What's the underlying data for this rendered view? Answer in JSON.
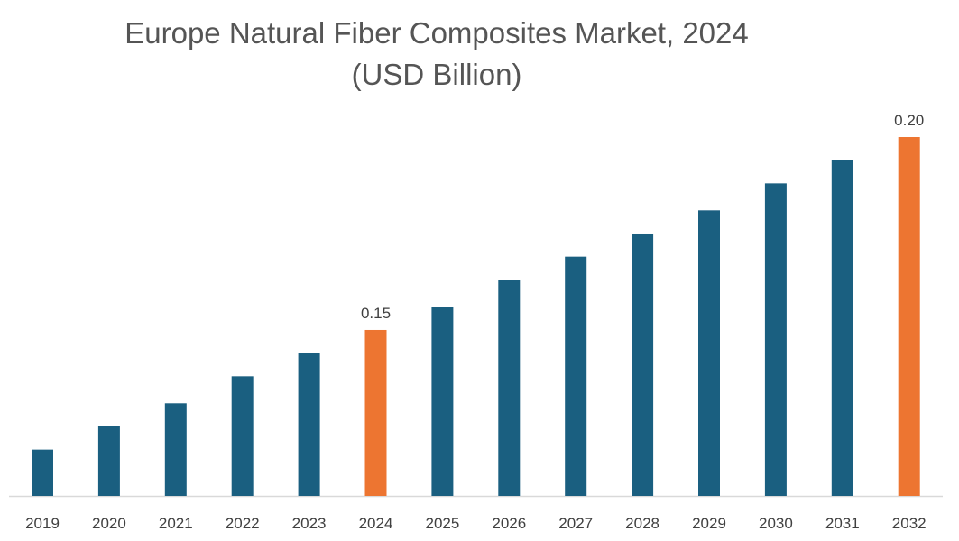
{
  "chart_data": {
    "type": "bar",
    "title": "Europe Natural Fiber Composites Market, 2024",
    "subtitle": "(USD Billion)",
    "xlabel": "",
    "ylabel": "",
    "categories": [
      "2019",
      "2020",
      "2021",
      "2022",
      "2023",
      "2024",
      "2025",
      "2026",
      "2027",
      "2028",
      "2029",
      "2030",
      "2031",
      "2032"
    ],
    "values": [
      0.119,
      0.125,
      0.131,
      0.138,
      0.144,
      0.15,
      0.156,
      0.163,
      0.169,
      0.175,
      0.181,
      0.188,
      0.194,
      0.2
    ],
    "data_labels": {
      "2024": "0.15",
      "2032": "0.20"
    },
    "highlight": [
      "2024",
      "2032"
    ],
    "ylim": [
      0.107,
      0.2
    ],
    "grid": false,
    "colors": {
      "bar": "#1a5f80",
      "highlight": "#ed7531",
      "axis": "#d9d9d9",
      "text": "#404040"
    }
  }
}
